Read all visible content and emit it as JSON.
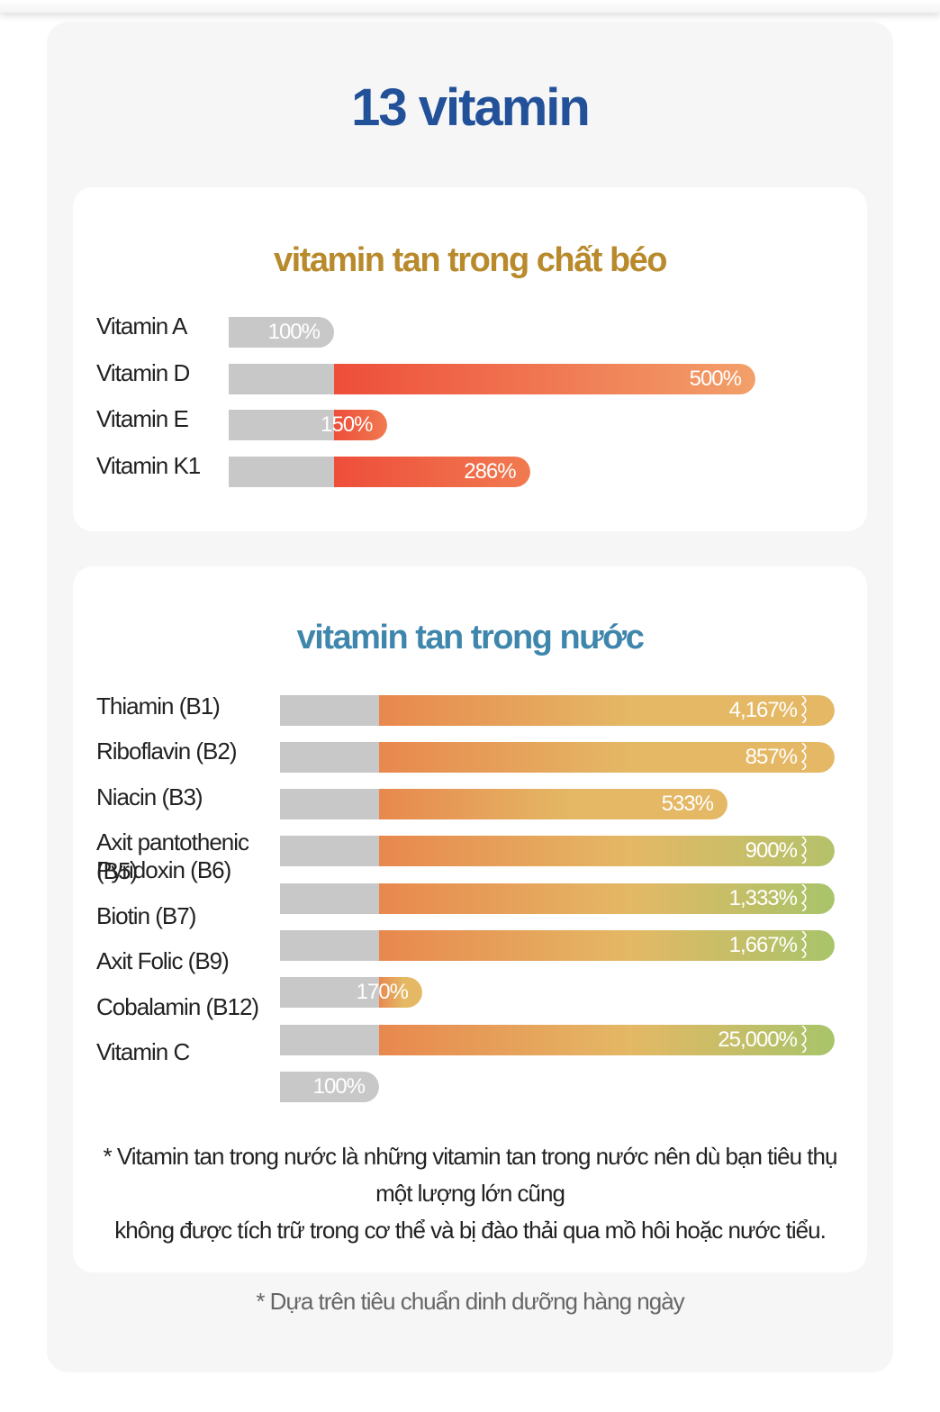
{
  "title": "13 vitamin",
  "chart_data": [
    {
      "type": "bar",
      "title": "vitamin tan trong chất béo",
      "categories": [
        "Vitamin A",
        "Vitamin D",
        "Vitamin E",
        "Vitamin K1"
      ],
      "values": [
        100,
        500,
        150,
        286
      ],
      "value_labels": [
        "100%",
        "500%",
        "150%",
        "286%"
      ],
      "orientation": "horizontal",
      "colors": {
        "base": "#c8c8c8",
        "start": "#ee4e3a",
        "end": "#f2a06a"
      }
    },
    {
      "type": "bar",
      "title": "vitamin tan trong nước",
      "categories": [
        "Thiamin (B1)",
        "Riboflavin (B2)",
        "Niacin (B3)",
        "Axit pantothenic (B5)",
        "Pyridoxin (B6)",
        "Biotin (B7)",
        "Axit Folic (B9)",
        "Cobalamin (B12)",
        "Vitamin C"
      ],
      "values": [
        4167,
        857,
        533,
        900,
        1333,
        1667,
        170,
        25000,
        100
      ],
      "value_labels": [
        "4,167%",
        "857%",
        "533%",
        "900%",
        "1,333%",
        "1,667%",
        "170%",
        "25,000%",
        "100%"
      ],
      "broken_axis": [
        true,
        true,
        false,
        true,
        true,
        true,
        false,
        true,
        false
      ],
      "orientation": "horizontal",
      "colors": {
        "base": "#c8c8c8",
        "orange": "#e8884e",
        "yellow": "#e4b865",
        "green": "#a8c46a"
      }
    }
  ],
  "footnote": {
    "line1": "* Vitamin tan trong nước là những vitamin tan trong nước nên dù bạn tiêu thụ",
    "line2": "một lượng lớn cũng",
    "line3": "không được tích trữ trong cơ thể và bị đào thải qua mồ hôi hoặc nước tiểu."
  },
  "standard_note": "* Dựa trên tiêu chuẩn dinh dưỡng hàng ngày"
}
